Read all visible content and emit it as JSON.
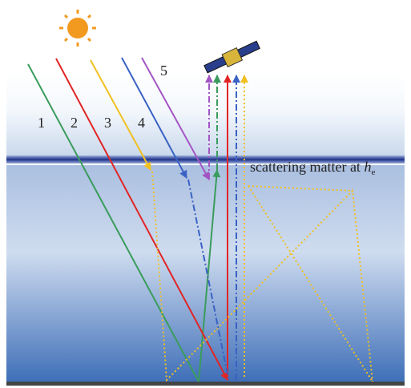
{
  "rays": [
    {
      "label": "1"
    },
    {
      "label": "2"
    },
    {
      "label": "3"
    },
    {
      "label": "4"
    },
    {
      "label": "5"
    }
  ],
  "annotation": {
    "text": "scattering matter at",
    "symbol": "h",
    "subscript": "e"
  }
}
